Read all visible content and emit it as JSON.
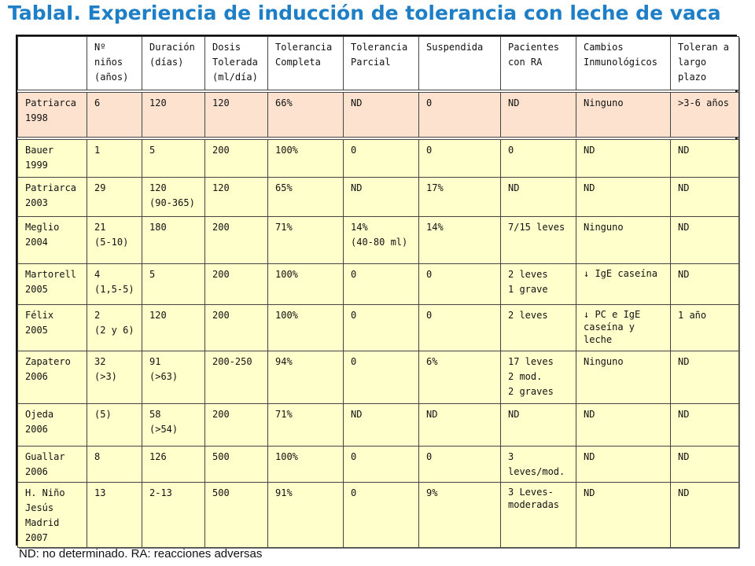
{
  "title": "TablaI. Experiencia de inducción de tolerancia con leche de vaca",
  "footnote": "ND: no determinado. RA: reacciones adversas",
  "table": {
    "headers": [
      [
        ""
      ],
      [
        "Nº",
        "niños",
        "(años)"
      ],
      [
        "Duración",
        "(días)"
      ],
      [
        "Dosis",
        "Tolerada",
        "(ml/día)"
      ],
      [
        "Tolerancia",
        "Completa"
      ],
      [
        "Tolerancia",
        "Parcial"
      ],
      [
        "Suspendida"
      ],
      [
        "Pacientes",
        "con RA"
      ],
      [
        "Cambios",
        "Inmunológicos"
      ],
      [
        "Toleran a",
        "largo",
        "plazo"
      ]
    ],
    "rows": [
      [
        [
          "Patriarca",
          "1998"
        ],
        [
          "6"
        ],
        [
          "120"
        ],
        [
          "120"
        ],
        [
          "66%"
        ],
        [
          "ND"
        ],
        [
          "0"
        ],
        [
          "ND"
        ],
        [
          "Ninguno"
        ],
        [
          ">3-6 años"
        ]
      ],
      [
        [
          "Bauer",
          "1999"
        ],
        [
          "1"
        ],
        [
          "5"
        ],
        [
          "200"
        ],
        [
          "100%"
        ],
        [
          "0"
        ],
        [
          "0"
        ],
        [
          "0"
        ],
        [
          "ND"
        ],
        [
          "ND"
        ]
      ],
      [
        [
          "Patriarca",
          "2003"
        ],
        [
          "29"
        ],
        [
          "120",
          "(90-365)"
        ],
        [
          "120"
        ],
        [
          "65%"
        ],
        [
          "ND"
        ],
        [
          "17%"
        ],
        [
          "ND"
        ],
        [
          "ND"
        ],
        [
          "ND"
        ]
      ],
      [
        [
          "Meglio",
          "2004"
        ],
        [
          "21",
          "(5-10)"
        ],
        [
          "180"
        ],
        [
          "200"
        ],
        [
          "71%"
        ],
        [
          "14%",
          "(40-80 ml)"
        ],
        [
          "14%"
        ],
        [
          "7/15 leves"
        ],
        [
          "Ninguno"
        ],
        [
          "ND"
        ]
      ],
      [
        [
          "Martorell",
          "2005"
        ],
        [
          "4",
          "(1,5-5)"
        ],
        [
          "5"
        ],
        [
          "200"
        ],
        [
          "100%"
        ],
        [
          "0"
        ],
        [
          "0"
        ],
        [
          "2 leves",
          "1 grave"
        ],
        [
          "↓ IgE caseína"
        ],
        [
          "ND"
        ]
      ],
      [
        [
          "Félix",
          "2005"
        ],
        [
          "2",
          "(2 y 6)"
        ],
        [
          "120"
        ],
        [
          "200"
        ],
        [
          "100%"
        ],
        [
          "0"
        ],
        [
          "0"
        ],
        [
          "2 leves"
        ],
        [
          "↓ PC e IgE caseína y leche"
        ],
        [
          "1 año"
        ]
      ],
      [
        [
          "Zapatero",
          "2006"
        ],
        [
          "32",
          "(>3)"
        ],
        [
          "91",
          "(>63)"
        ],
        [
          "200-250"
        ],
        [
          "94%"
        ],
        [
          "0"
        ],
        [
          "6%"
        ],
        [
          "17 leves",
          "2 mod.",
          "2 graves"
        ],
        [
          "Ninguno"
        ],
        [
          "ND"
        ]
      ],
      [
        [
          "Ojeda",
          "2006"
        ],
        [
          "(5)"
        ],
        [
          "58",
          "(>54)"
        ],
        [
          "200"
        ],
        [
          "71%"
        ],
        [
          "ND"
        ],
        [
          "ND"
        ],
        [
          "ND"
        ],
        [
          "ND"
        ],
        [
          "ND"
        ]
      ],
      [
        [
          "Guallar",
          "2006"
        ],
        [
          "8"
        ],
        [
          "126"
        ],
        [
          "500"
        ],
        [
          "100%"
        ],
        [
          "0"
        ],
        [
          "0"
        ],
        [
          "3 leves/mod."
        ],
        [
          "ND"
        ],
        [
          "ND"
        ]
      ],
      [
        [
          "H. Niño",
          "Jesús",
          "Madrid",
          "2007"
        ],
        [
          "13"
        ],
        [
          "2-13"
        ],
        [
          "500"
        ],
        [
          "91%"
        ],
        [
          "0"
        ],
        [
          "9%"
        ],
        [
          "3 Leves-moderadas"
        ],
        [
          "ND"
        ],
        [
          "ND"
        ]
      ]
    ],
    "highlight_color": "#fde3cf",
    "row_color": "#ffffcc"
  }
}
